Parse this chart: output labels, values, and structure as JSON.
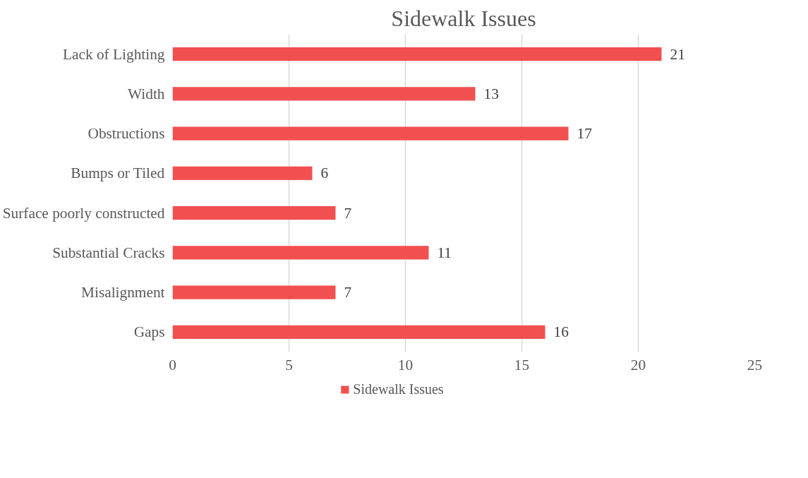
{
  "chart_data": {
    "type": "bar",
    "orientation": "horizontal",
    "title": "Sidewalk Issues",
    "categories": [
      "Lack of Lighting",
      "Width",
      "Obstructions",
      "Bumps or Tiled",
      "Surface poorly constructed",
      "Substantial Cracks",
      "Misalignment",
      "Gaps"
    ],
    "series": [
      {
        "name": "Sidewalk Issues",
        "color": "#f25050",
        "values": [
          21,
          13,
          17,
          6,
          7,
          11,
          7,
          16
        ]
      }
    ],
    "xlim": [
      0,
      25
    ],
    "xticks": [
      0,
      5,
      10,
      15,
      20,
      25
    ],
    "grid": "x",
    "legend": "bottom",
    "data_labels": true
  }
}
